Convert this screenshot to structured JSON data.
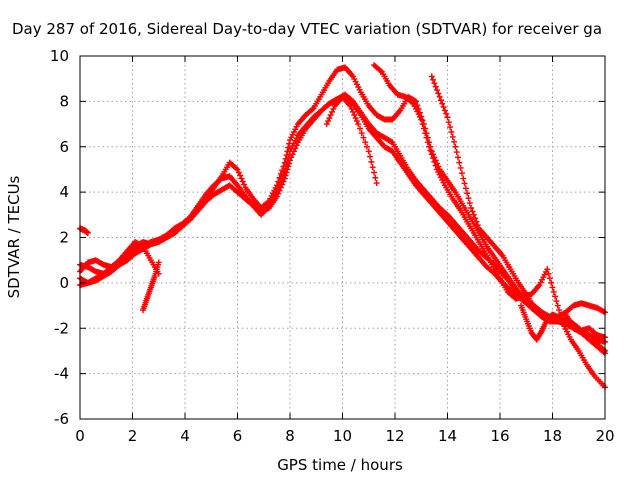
{
  "chart_data": {
    "type": "scatter",
    "title": "Day 287 of 2016, Sidereal Day-to-day VTEC variation (SDTVAR) for receiver ga",
    "xlabel": "GPS time / hours",
    "ylabel": "SDTVAR / TECUs",
    "xlim": [
      0,
      20
    ],
    "ylim": [
      -6,
      10
    ],
    "xticks": [
      "0",
      "2",
      "4",
      "6",
      "8",
      "10",
      "12",
      "14",
      "16",
      "18",
      "20"
    ],
    "yticks": [
      "-6",
      "-4",
      "-2",
      "0",
      "2",
      "4",
      "6",
      "8",
      "10"
    ],
    "grid": true,
    "marker": "plus",
    "color": "#ff0000",
    "series": [
      {
        "x": [
          0.0,
          0.1,
          0.2,
          0.3
        ],
        "y": [
          2.4,
          2.35,
          2.3,
          2.2
        ]
      },
      {
        "x": [
          0.0,
          0.3,
          0.6,
          0.9,
          1.2,
          1.5,
          1.8,
          2.1,
          2.4,
          2.7,
          3.0,
          3.3,
          3.6,
          3.9,
          4.2,
          4.5,
          4.8,
          5.1,
          5.4,
          5.7,
          6.0,
          6.3,
          6.6,
          6.9,
          7.2,
          7.5,
          7.8,
          8.0,
          8.3,
          8.6,
          8.9,
          9.2,
          9.5,
          9.8,
          10.1,
          10.4,
          10.7,
          11.0,
          11.3,
          11.6,
          11.9,
          12.2,
          12.5,
          12.8,
          13.1,
          13.4,
          13.7,
          14.0,
          14.3,
          14.6,
          14.9,
          15.2,
          15.5,
          15.8,
          16.1,
          16.4,
          16.7,
          17.0,
          17.3,
          17.6,
          17.9,
          18.2,
          18.5,
          18.8,
          19.1,
          19.4,
          19.7,
          20.0
        ],
        "y": [
          0.8,
          0.7,
          0.5,
          0.4,
          0.6,
          0.9,
          1.2,
          1.4,
          1.6,
          1.8,
          1.9,
          2.0,
          2.2,
          2.5,
          2.8,
          3.2,
          3.6,
          3.9,
          4.1,
          4.3,
          4.0,
          3.7,
          3.4,
          3.1,
          3.3,
          3.8,
          4.6,
          5.4,
          6.2,
          6.8,
          7.2,
          7.6,
          7.9,
          8.1,
          8.3,
          8.0,
          7.5,
          7.0,
          6.6,
          6.4,
          6.2,
          5.6,
          5.0,
          4.5,
          4.1,
          3.7,
          3.3,
          3.0,
          2.6,
          2.2,
          1.8,
          1.4,
          1.1,
          0.8,
          0.4,
          0.0,
          -0.4,
          -0.7,
          -1.0,
          -1.3,
          -1.5,
          -1.6,
          -1.7,
          -1.9,
          -2.1,
          -2.3,
          -2.5,
          -2.6
        ]
      },
      {
        "x": [
          0.0,
          0.3,
          0.6,
          0.9,
          1.2,
          1.5,
          1.8,
          2.1,
          2.4,
          2.7,
          3.0,
          3.3,
          3.6,
          3.9,
          4.2,
          4.5,
          4.8,
          5.1,
          5.4,
          5.7,
          6.0,
          6.3,
          6.6,
          6.9,
          7.2,
          7.5,
          7.8,
          8.0,
          8.3,
          8.6,
          8.9,
          9.2,
          9.5,
          9.8,
          10.1,
          10.4,
          10.7,
          11.0,
          11.3,
          11.6,
          11.9,
          12.2,
          12.5,
          12.8,
          13.1,
          13.4,
          13.7,
          14.0,
          14.3,
          14.6,
          14.9,
          15.2,
          15.5,
          15.8,
          16.1,
          16.4,
          16.7,
          17.0,
          17.3,
          17.6,
          17.9,
          18.2,
          18.5,
          18.8,
          19.1,
          19.4,
          19.7,
          20.0
        ],
        "y": [
          0.2,
          0.0,
          0.1,
          0.3,
          0.5,
          0.8,
          1.0,
          1.3,
          1.5,
          1.7,
          1.8,
          2.0,
          2.2,
          2.5,
          2.9,
          3.4,
          3.9,
          4.3,
          4.6,
          4.7,
          4.3,
          3.8,
          3.4,
          3.0,
          3.4,
          4.0,
          4.9,
          5.8,
          6.5,
          6.9,
          7.3,
          7.6,
          7.9,
          8.1,
          8.2,
          7.9,
          7.4,
          6.8,
          6.4,
          6.0,
          5.8,
          5.3,
          4.8,
          4.3,
          3.9,
          3.5,
          3.1,
          2.7,
          2.3,
          1.9,
          1.5,
          1.1,
          0.7,
          0.4,
          0.0,
          -0.3,
          -0.6,
          -0.9,
          -1.2,
          -1.4,
          -1.6,
          -1.7,
          -1.8,
          -2.0,
          -2.2,
          -2.5,
          -2.8,
          -3.1
        ]
      },
      {
        "x": [
          0.0,
          0.3,
          0.6,
          0.9,
          1.2,
          1.5,
          1.8,
          2.1,
          2.4,
          2.7,
          3.0,
          3.3,
          3.6,
          3.9,
          4.2,
          4.5,
          4.8,
          5.1,
          5.4,
          5.7,
          6.0,
          6.3,
          6.6,
          6.9,
          7.2,
          7.5,
          7.8,
          8.0,
          8.3,
          8.6,
          8.9,
          9.2,
          9.5,
          9.8,
          10.1,
          10.4,
          10.7,
          11.0,
          11.3,
          11.6,
          11.9,
          12.2,
          12.5,
          12.8,
          13.1,
          13.4,
          13.7,
          14.0,
          14.3,
          14.6,
          14.9,
          15.2,
          15.5,
          15.8,
          16.1,
          16.4,
          16.7,
          17.0,
          17.3,
          17.6,
          17.9,
          18.2,
          18.5,
          18.8,
          19.1,
          19.4,
          19.7,
          20.0
        ],
        "y": [
          0.5,
          0.9,
          1.0,
          0.8,
          0.7,
          0.9,
          1.3,
          1.6,
          1.8,
          1.7,
          1.9,
          2.1,
          2.4,
          2.6,
          2.9,
          3.3,
          3.7,
          4.2,
          4.7,
          5.3,
          5.0,
          4.2,
          3.7,
          3.3,
          3.6,
          4.3,
          5.3,
          6.3,
          7.0,
          7.4,
          7.7,
          8.3,
          8.9,
          9.4,
          9.5,
          9.1,
          8.4,
          7.8,
          7.4,
          7.2,
          7.2,
          7.6,
          8.2,
          8.0,
          7.0,
          5.8,
          5.0,
          4.5,
          4.0,
          3.4,
          2.8,
          2.2,
          1.6,
          1.1,
          0.6,
          0.1,
          -0.4,
          -0.8,
          -1.2,
          -1.5,
          -1.7,
          -1.7,
          -1.6,
          -1.8,
          -2.1,
          -2.4,
          -2.7,
          -3.0
        ]
      },
      {
        "x": [
          0.0,
          0.3,
          0.6,
          0.9,
          1.2,
          1.5,
          1.8,
          2.1,
          2.4,
          2.7,
          3.0
        ],
        "y": [
          -0.1,
          0.0,
          0.2,
          0.4,
          0.7,
          1.0,
          1.4,
          1.8,
          1.6,
          1.0,
          0.4
        ]
      },
      {
        "x": [
          2.4,
          2.55,
          2.7,
          2.85,
          3.0
        ],
        "y": [
          -1.2,
          -0.7,
          -0.2,
          0.3,
          0.9
        ]
      },
      {
        "x": [
          9.4,
          9.7,
          10.0,
          10.3,
          10.6,
          11.0,
          11.3
        ],
        "y": [
          7.0,
          7.8,
          8.2,
          7.8,
          7.0,
          5.8,
          4.4
        ]
      },
      {
        "x": [
          11.2,
          11.5,
          11.8,
          12.1,
          12.4,
          12.7,
          13.0,
          13.3,
          13.6,
          13.9,
          14.2,
          14.5,
          14.8,
          15.1,
          15.4,
          15.7,
          16.0,
          16.3,
          16.6,
          16.9,
          17.2,
          17.5,
          17.8,
          18.1,
          18.4,
          18.7,
          19.0,
          19.3,
          19.6,
          20.0
        ],
        "y": [
          9.6,
          9.3,
          8.7,
          8.3,
          8.2,
          7.9,
          7.2,
          6.0,
          5.0,
          4.3,
          3.7,
          3.2,
          2.6,
          2.0,
          1.4,
          0.8,
          0.2,
          -0.4,
          -0.7,
          -0.6,
          -0.5,
          -0.1,
          0.6,
          -0.6,
          -1.8,
          -2.5,
          -3.0,
          -3.6,
          -4.1,
          -4.6
        ]
      },
      {
        "x": [
          13.4,
          13.7,
          14.0,
          14.3,
          14.6,
          14.9,
          15.2,
          15.5,
          15.8,
          16.1,
          16.4,
          16.7,
          17.0,
          17.3,
          17.6,
          17.9,
          18.2,
          18.5,
          18.8,
          19.1,
          19.4,
          19.7,
          20.0
        ],
        "y": [
          9.1,
          8.2,
          7.3,
          6.0,
          4.6,
          3.3,
          2.4,
          2.0,
          1.6,
          1.2,
          0.6,
          0.0,
          -0.5,
          -1.1,
          -1.5,
          -1.6,
          -1.5,
          -1.3,
          -1.0,
          -0.9,
          -1.0,
          -1.1,
          -1.3
        ]
      },
      {
        "x": [
          16.8,
          17.0,
          17.2,
          17.4,
          17.6,
          17.8,
          18.0,
          18.2
        ],
        "y": [
          -1.0,
          -1.6,
          -2.2,
          -2.5,
          -2.1,
          -1.6,
          -1.4,
          -1.5
        ]
      },
      {
        "x": [
          18.5,
          18.8,
          19.1,
          19.4,
          19.7,
          20.0
        ],
        "y": [
          -1.4,
          -1.9,
          -2.1,
          -2.0,
          -2.3,
          -2.4
        ]
      }
    ]
  }
}
